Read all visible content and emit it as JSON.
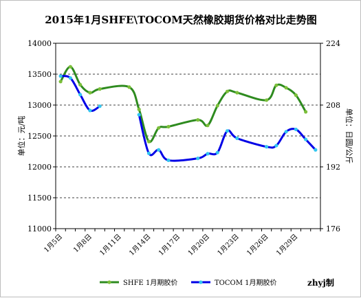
{
  "chart_data": {
    "type": "line",
    "title": "2015年1月SHFE\\TOCOM天然橡胶期货价格对比走势图",
    "ylabel_left": "单位：元/吨",
    "ylabel_right": "单位：日圆/公斤",
    "ylim_left": [
      11000,
      14000
    ],
    "yticks_left": [
      "14000",
      "13500",
      "13000",
      "12500",
      "12000",
      "11500",
      "11000"
    ],
    "ylim_right": [
      176,
      224
    ],
    "yticks_right": [
      "224",
      "208",
      "192",
      "176"
    ],
    "grid": true,
    "legend_position": "bottom",
    "x_ticks": [
      "1月5日",
      "1月8日",
      "1月11日",
      "1月14日",
      "1月17日",
      "1月20日",
      "1月23日",
      "1月26日",
      "1月29日"
    ],
    "series": [
      {
        "name": "SHFE 1月期胶价",
        "axis": "left",
        "color": "#2e8b1f",
        "marker_color": "#7cbf3a",
        "points": [
          {
            "x": "1月5日",
            "y": 13380
          },
          {
            "x": "1月6日",
            "y": 13620
          },
          {
            "x": "1月7日",
            "y": 13330
          },
          {
            "x": "1月8日",
            "y": 13200
          },
          {
            "x": "1月9日",
            "y": 13260
          },
          {
            "x": "1月12日",
            "y": 13290
          },
          {
            "x": "1月13日",
            "y": 12930
          },
          {
            "x": "1月14日",
            "y": 12410
          },
          {
            "x": "1月15日",
            "y": 12630
          },
          {
            "x": "1月16日",
            "y": 12650
          },
          {
            "x": "1月19日",
            "y": 12760
          },
          {
            "x": "1月20日",
            "y": 12670
          },
          {
            "x": "1月21日",
            "y": 12990
          },
          {
            "x": "1月22日",
            "y": 13220
          },
          {
            "x": "1月23日",
            "y": 13200
          },
          {
            "x": "1月26日",
            "y": 13080
          },
          {
            "x": "1月27日",
            "y": 13320
          },
          {
            "x": "1月28日",
            "y": 13280
          },
          {
            "x": "1月29日",
            "y": 13160
          },
          {
            "x": "1月30日",
            "y": 12890
          }
        ]
      },
      {
        "name": "TOCOM 1月期胶价",
        "axis": "right",
        "color": "#0000e6",
        "marker_color": "#33c6f0",
        "points": [
          {
            "x": "1月5日",
            "y": 215.5
          },
          {
            "x": "1月6日",
            "y": 215.0
          },
          {
            "x": "1月7日",
            "y": 210.7
          },
          {
            "x": "1月8日",
            "y": 206.6
          },
          {
            "x": "1月9日",
            "y": 207.7
          },
          {
            "x": null,
            "y": null
          },
          {
            "x": "1月13日",
            "y": 205.5
          },
          {
            "x": "1月14日",
            "y": 195.5
          },
          {
            "x": "1月15日",
            "y": 196.4
          },
          {
            "x": "1月16日",
            "y": 193.7
          },
          {
            "x": "1月19日",
            "y": 194.2
          },
          {
            "x": "1月20日",
            "y": 195.4
          },
          {
            "x": "1月21日",
            "y": 195.7
          },
          {
            "x": "1月22日",
            "y": 201.3
          },
          {
            "x": "1月23日",
            "y": 199.4
          },
          {
            "x": "1月26日",
            "y": 197.2
          },
          {
            "x": "1月27日",
            "y": 197.5
          },
          {
            "x": "1月28日",
            "y": 201.1
          },
          {
            "x": "1月29日",
            "y": 201.7
          },
          {
            "x": "1月30日",
            "y": 199.1
          },
          {
            "x": "1月31日",
            "y": 196.4
          }
        ]
      }
    ],
    "watermark": "zhyj制"
  }
}
